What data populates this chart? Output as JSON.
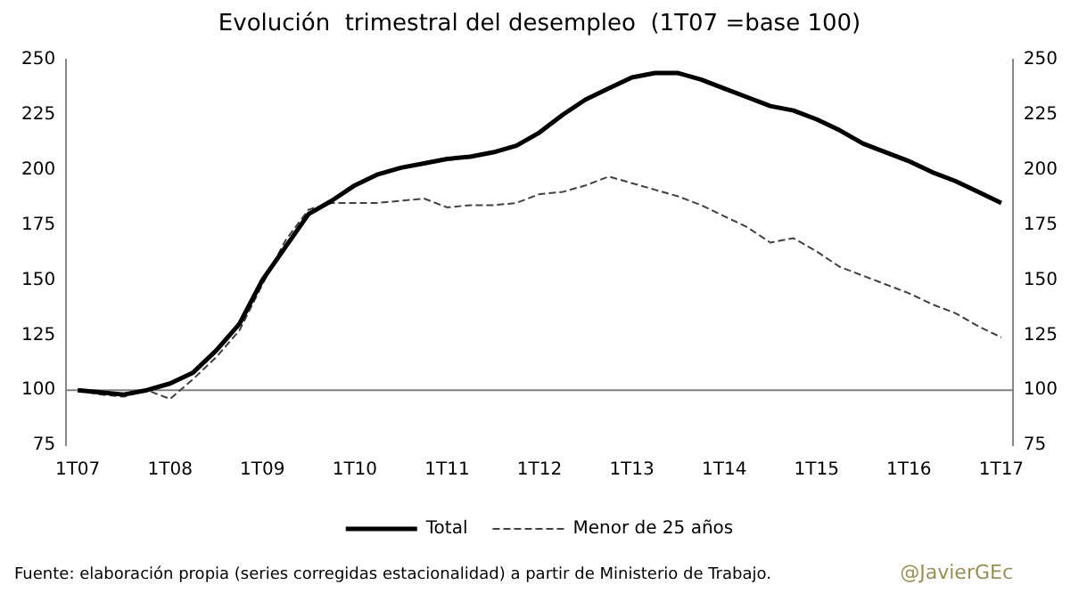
{
  "chart_data": {
    "type": "line",
    "title": "Evolución  trimestral del desempleo  (1T07 =base 100)",
    "categories": [
      "1T07",
      null,
      null,
      null,
      "1T08",
      null,
      null,
      null,
      "1T09",
      null,
      null,
      null,
      "1T10",
      null,
      null,
      null,
      "1T11",
      null,
      null,
      null,
      "1T12",
      null,
      null,
      null,
      "1T13",
      null,
      null,
      null,
      "1T14",
      null,
      null,
      null,
      "1T15",
      null,
      null,
      null,
      "1T16",
      null,
      null,
      null,
      "1T17"
    ],
    "series": [
      {
        "name": "Total",
        "color": "#000000",
        "line_style": "solid",
        "values": [
          100,
          99,
          98,
          100,
          103,
          108,
          118,
          130,
          150,
          165,
          180,
          186,
          193,
          198,
          201,
          203,
          205,
          206,
          208,
          211,
          217,
          225,
          232,
          237,
          242,
          244,
          244,
          241,
          237,
          233,
          229,
          227,
          223,
          218,
          212,
          208,
          204,
          199,
          195,
          190,
          185
        ]
      },
      {
        "name": "Menor de 25 años",
        "color": "#404040",
        "line_style": "dashed",
        "values": [
          100,
          98,
          97,
          100,
          96,
          105,
          115,
          127,
          148,
          168,
          182,
          185,
          185,
          185,
          186,
          187,
          183,
          184,
          184,
          185,
          189,
          190,
          193,
          197,
          194,
          191,
          188,
          184,
          179,
          174,
          167,
          169,
          163,
          156,
          152,
          148,
          144,
          139,
          135,
          129,
          124
        ]
      }
    ],
    "ylim": [
      75,
      250
    ],
    "yticks": [
      75,
      100,
      125,
      150,
      175,
      200,
      225,
      250
    ],
    "y2lim": [
      75,
      250
    ],
    "y2ticks": [
      75,
      100,
      125,
      150,
      175,
      200,
      225,
      250
    ],
    "ref_lines": [
      {
        "axis": "y",
        "value": 100,
        "color": "#808080"
      }
    ],
    "grid": false,
    "legend": "bottom",
    "marker": "none",
    "annotations": [
      "Fuente:  elaboración  propia  (series corregidas estacionalidad) a partir de Ministerio de Trabajo.",
      "@JavierGEc"
    ]
  }
}
